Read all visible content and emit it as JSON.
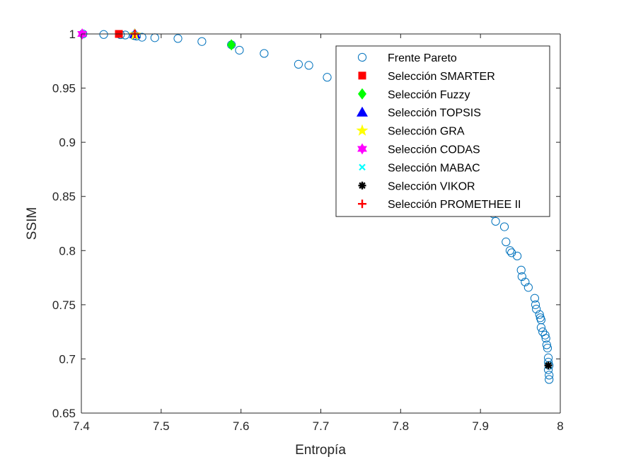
{
  "chart_data": {
    "type": "scatter",
    "xlabel": "Entropía",
    "ylabel": "SSIM",
    "xlim": [
      7.4,
      8.0
    ],
    "ylim": [
      0.65,
      1.0
    ],
    "xticks": [
      "7.4",
      "7.5",
      "7.6",
      "7.7",
      "7.8",
      "7.9",
      "8"
    ],
    "yticks": [
      "0.65",
      "0.7",
      "0.75",
      "0.8",
      "0.85",
      "0.9",
      "0.95",
      "1"
    ],
    "grid": false,
    "legend_position": "top-right",
    "series": [
      {
        "name": "Frente Pareto",
        "marker": "circle-open",
        "color": "#0072BD",
        "points": [
          [
            7.402,
            1.0
          ],
          [
            7.428,
            0.9995
          ],
          [
            7.449,
            0.9993
          ],
          [
            7.455,
            0.999
          ],
          [
            7.466,
            0.9985
          ],
          [
            7.469,
            0.998
          ],
          [
            7.476,
            0.997
          ],
          [
            7.492,
            0.9965
          ],
          [
            7.521,
            0.9958
          ],
          [
            7.551,
            0.993
          ],
          [
            7.588,
            0.99
          ],
          [
            7.598,
            0.985
          ],
          [
            7.629,
            0.982
          ],
          [
            7.672,
            0.972
          ],
          [
            7.685,
            0.971
          ],
          [
            7.708,
            0.96
          ],
          [
            7.916,
            0.834
          ],
          [
            7.919,
            0.827
          ],
          [
            7.93,
            0.822
          ],
          [
            7.932,
            0.808
          ],
          [
            7.937,
            0.8
          ],
          [
            7.939,
            0.798
          ],
          [
            7.946,
            0.795
          ],
          [
            7.951,
            0.782
          ],
          [
            7.952,
            0.776
          ],
          [
            7.956,
            0.771
          ],
          [
            7.96,
            0.766
          ],
          [
            7.968,
            0.756
          ],
          [
            7.969,
            0.75
          ],
          [
            7.97,
            0.746
          ],
          [
            7.974,
            0.741
          ],
          [
            7.975,
            0.738
          ],
          [
            7.976,
            0.736
          ],
          [
            7.976,
            0.729
          ],
          [
            7.978,
            0.725
          ],
          [
            7.981,
            0.722
          ],
          [
            7.982,
            0.719
          ],
          [
            7.983,
            0.713
          ],
          [
            7.984,
            0.71
          ],
          [
            7.985,
            0.701
          ],
          [
            7.985,
            0.697
          ],
          [
            7.986,
            0.694
          ],
          [
            7.985,
            0.69
          ],
          [
            7.986,
            0.685
          ],
          [
            7.986,
            0.681
          ]
        ]
      },
      {
        "name": "Selección SMARTER",
        "marker": "square",
        "color": "#FF0000",
        "points": [
          [
            7.447,
            1.0
          ]
        ]
      },
      {
        "name": "Selección Fuzzy",
        "marker": "diamond",
        "color": "#00FF00",
        "points": [
          [
            7.588,
            0.99
          ]
        ]
      },
      {
        "name": "Selección TOPSIS",
        "marker": "triangle",
        "color": "#0000FF",
        "points": [
          [
            7.467,
            1.0
          ]
        ]
      },
      {
        "name": "Selección GRA",
        "marker": "pentagram",
        "color": "#FFFF00",
        "points": [
          [
            7.467,
            0.9995
          ]
        ]
      },
      {
        "name": "Selección CODAS",
        "marker": "hexagram",
        "color": "#FF00FF",
        "points": [
          [
            7.401,
            1.0
          ]
        ]
      },
      {
        "name": "Selección MABAC",
        "marker": "x",
        "color": "#00FFFF",
        "points": [
          [
            7.985,
            0.694
          ]
        ]
      },
      {
        "name": "Selección VIKOR",
        "marker": "asterisk",
        "color": "#000000",
        "points": [
          [
            7.985,
            0.694
          ]
        ]
      },
      {
        "name": "Selección PROMETHEE II",
        "marker": "plus",
        "color": "#FF0000",
        "points": [
          [
            7.467,
            1.0
          ]
        ]
      }
    ]
  }
}
